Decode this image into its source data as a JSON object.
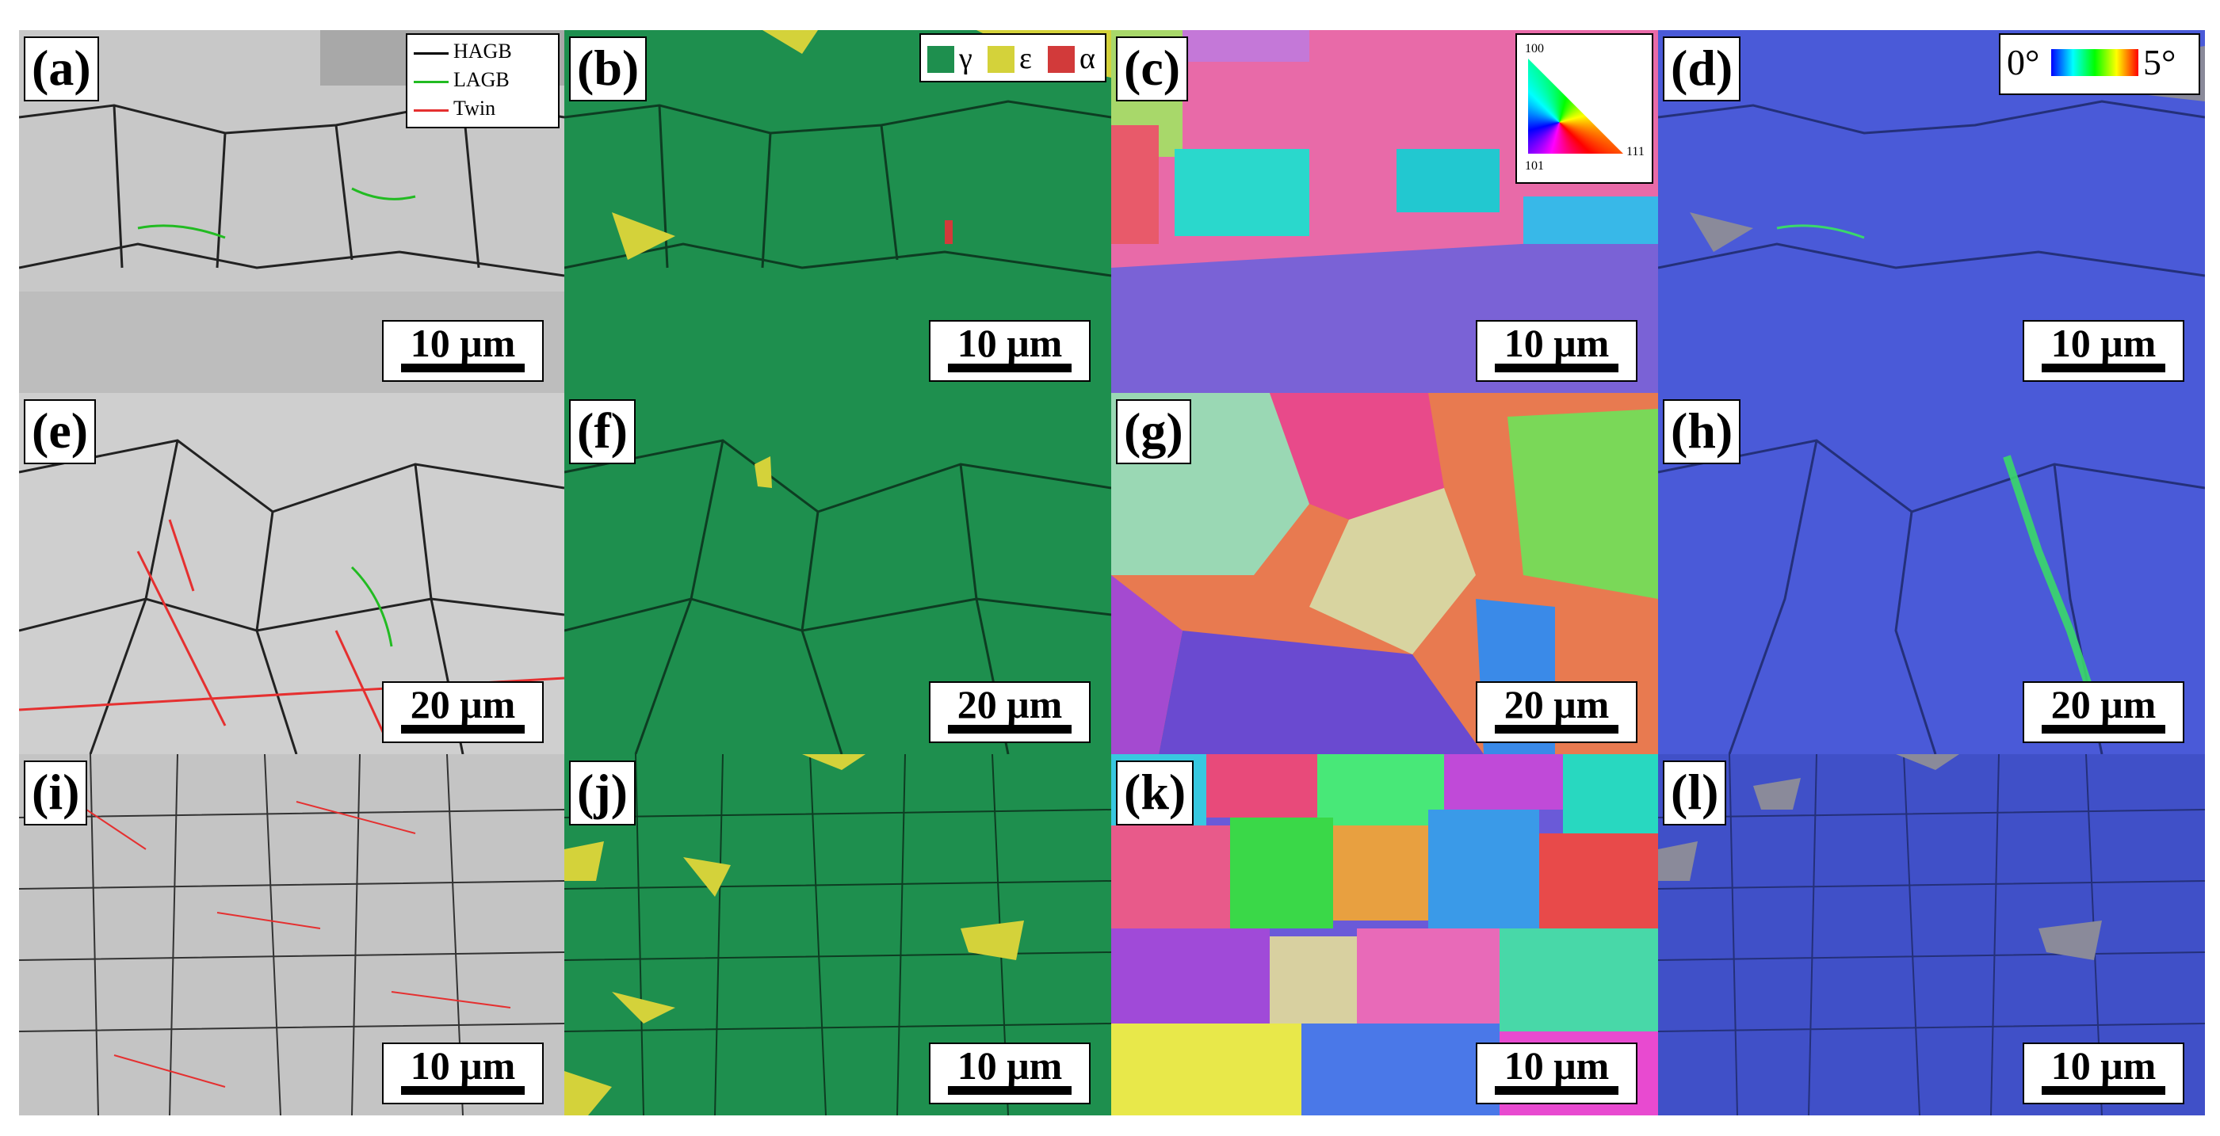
{
  "figure": {
    "panels": [
      {
        "label": "(a)",
        "scale": "10 μm",
        "type": "boundary"
      },
      {
        "label": "(b)",
        "scale": "10 μm",
        "type": "phase"
      },
      {
        "label": "(c)",
        "scale": "10 μm",
        "type": "ipf"
      },
      {
        "label": "(d)",
        "scale": "10 μm",
        "type": "kam"
      },
      {
        "label": "(e)",
        "scale": "20 μm",
        "type": "boundary"
      },
      {
        "label": "(f)",
        "scale": "20 μm",
        "type": "phase"
      },
      {
        "label": "(g)",
        "scale": "20 μm",
        "type": "ipf"
      },
      {
        "label": "(h)",
        "scale": "20 μm",
        "type": "kam"
      },
      {
        "label": "(i)",
        "scale": "10 μm",
        "type": "boundary"
      },
      {
        "label": "(j)",
        "scale": "10 μm",
        "type": "phase"
      },
      {
        "label": "(k)",
        "scale": "10 μm",
        "type": "ipf"
      },
      {
        "label": "(l)",
        "scale": "10 μm",
        "type": "kam"
      }
    ],
    "legend_boundaries": {
      "items": [
        {
          "label": "HAGB",
          "color": "#000000"
        },
        {
          "label": "LAGB",
          "color": "#22bb22"
        },
        {
          "label": "Twin",
          "color": "#e53030"
        }
      ]
    },
    "legend_phases": {
      "items": [
        {
          "label": "γ",
          "color": "#1e8f4e"
        },
        {
          "label": "ε",
          "color": "#d4d23a"
        },
        {
          "label": "α",
          "color": "#d23a3a"
        }
      ]
    },
    "legend_ipf": {
      "top": "100",
      "left": "101",
      "right": "111"
    },
    "legend_kam": {
      "min": "0°",
      "max": "5°"
    }
  }
}
